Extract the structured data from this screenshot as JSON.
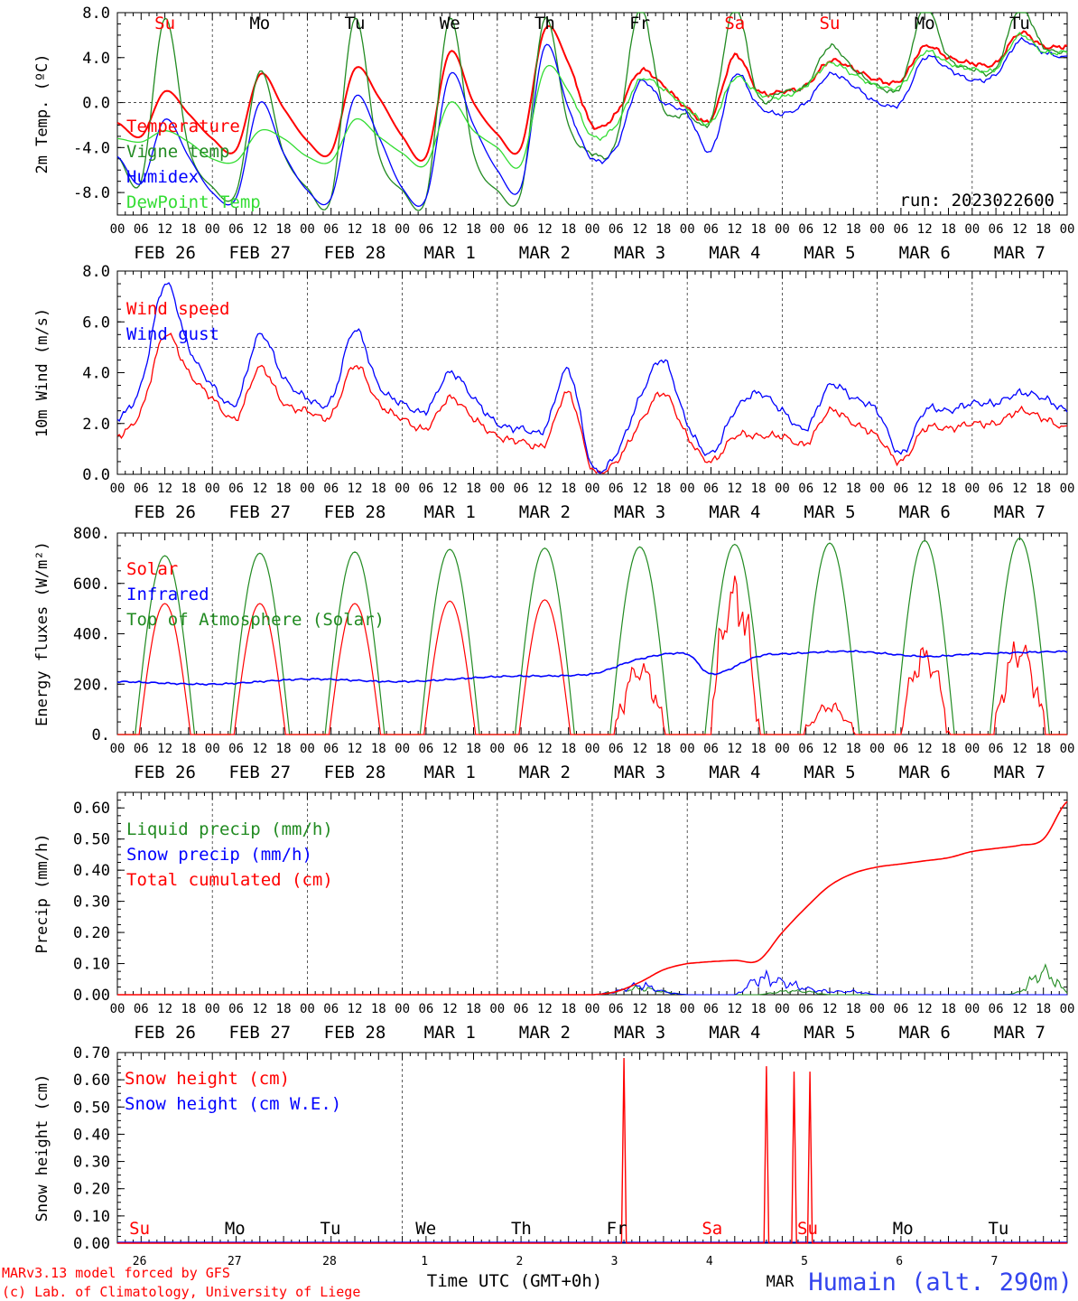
{
  "colors": {
    "red": "#ff0000",
    "green": "#228b22",
    "blue": "#0000ff",
    "lightgreen": "#33dd33",
    "black": "#000000",
    "station": "#3344ee"
  },
  "x_hour_labels": [
    "00",
    "06",
    "12",
    "18",
    "00",
    "06",
    "12",
    "18",
    "00",
    "06",
    "12",
    "18",
    "00",
    "06",
    "12",
    "18",
    "00",
    "06",
    "12",
    "18",
    "00",
    "06",
    "12",
    "18",
    "00",
    "06",
    "12",
    "18",
    "00",
    "06",
    "12",
    "18",
    "00",
    "06",
    "12",
    "18",
    "00",
    "06",
    "12",
    "18",
    "00"
  ],
  "x_date_labels": [
    "FEB 26",
    "FEB 27",
    "FEB 28",
    "MAR  1",
    "MAR  2",
    "MAR  3",
    "MAR  4",
    "MAR  5",
    "MAR  6",
    "MAR  7"
  ],
  "weekdays": [
    "Su",
    "Mo",
    "Tu",
    "We",
    "Th",
    "Fr",
    "Sa",
    "Su",
    "Mo",
    "Tu"
  ],
  "weekday_colors": [
    "red",
    "black",
    "black",
    "black",
    "black",
    "black",
    "red",
    "red",
    "black",
    "black"
  ],
  "bottom_day_numbers": [
    "26",
    "27",
    "28",
    "1",
    "2",
    "3",
    "4",
    "5",
    "6",
    "7"
  ],
  "bottom_month": "MAR",
  "footer": {
    "model": "MARv3.13 model forced by GFS",
    "lab": "(c) Lab. of Climatology, University of Liege",
    "time_axis": "Time UTC (GMT+0h)",
    "station": "Humain (alt. 290m)"
  },
  "chart_data": [
    {
      "type": "line",
      "ylabel": "2m Temp. (ºC)",
      "ylim": [
        -10,
        8
      ],
      "yticks": [
        "8.0",
        "4.0",
        "0.0",
        "-4.0",
        "-8.0"
      ],
      "ytick_values": [
        8,
        4,
        0,
        -4,
        -8
      ],
      "ref_line": 0,
      "run_label": "run: 2023022600",
      "x_hours": [
        0,
        6,
        12,
        18,
        24,
        30,
        36,
        42,
        48,
        54,
        60,
        66,
        72,
        78,
        84,
        90,
        96,
        102,
        108,
        114,
        120,
        126,
        132,
        138,
        144,
        150,
        156,
        162,
        168,
        174,
        180,
        186,
        192,
        198,
        204,
        210,
        216,
        222,
        228,
        234,
        240
      ],
      "series": [
        {
          "name": "Temperature",
          "color": "red",
          "values": [
            -1.8,
            -3.0,
            1.0,
            -1.0,
            -3.2,
            -4.2,
            2.5,
            -0.5,
            -3.4,
            -4.4,
            3.0,
            0.5,
            -3.0,
            -4.8,
            4.5,
            0.0,
            -2.8,
            -4.0,
            6.5,
            3.5,
            -2.0,
            -1.0,
            2.8,
            1.5,
            -0.5,
            -1.5,
            4.2,
            1.0,
            1.0,
            1.5,
            3.7,
            3.0,
            2.0,
            2.0,
            5.0,
            4.0,
            3.5,
            3.5,
            6.2,
            5.0,
            5.0
          ]
        },
        {
          "name": "Vigne temp",
          "color": "green",
          "values": [
            -4.8,
            -7.0,
            7.5,
            -4.0,
            -7.5,
            -8.0,
            2.8,
            -4.5,
            -7.6,
            -8.5,
            7.5,
            -4.5,
            -7.8,
            -8.5,
            7.5,
            -4.5,
            -7.8,
            -8.0,
            7.5,
            -2.0,
            -4.5,
            -3.5,
            8.5,
            -0.5,
            -1.0,
            -1.5,
            8.5,
            0.5,
            1.0,
            1.5,
            5.0,
            3.0,
            1.5,
            1.5,
            8.5,
            4.0,
            3.0,
            3.0,
            8.5,
            5.0,
            4.5
          ]
        },
        {
          "name": "Humidex",
          "color": "blue",
          "values": [
            -4.8,
            -7.2,
            -1.5,
            -4.8,
            -8.0,
            -8.5,
            0.0,
            -4.5,
            -7.8,
            -8.5,
            0.5,
            -3.0,
            -7.6,
            -8.5,
            2.5,
            -2.0,
            -6.0,
            -7.5,
            5.0,
            -0.5,
            -5.0,
            -4.0,
            1.8,
            0.0,
            -1.0,
            -4.3,
            2.5,
            -0.3,
            -1.0,
            0.0,
            2.5,
            1.5,
            0.0,
            0.0,
            4.0,
            3.0,
            2.0,
            2.5,
            5.5,
            4.5,
            4.0
          ]
        },
        {
          "name": "DewPoint Temp",
          "color": "lightgreen",
          "values": [
            -3.2,
            -3.5,
            -2.5,
            -3.5,
            -5.0,
            -5.2,
            -2.5,
            -3.2,
            -4.8,
            -5.2,
            -1.5,
            -3.0,
            -4.5,
            -5.5,
            0.0,
            -2.5,
            -4.0,
            -5.5,
            3.0,
            1.0,
            -3.0,
            -2.0,
            2.0,
            1.2,
            -0.5,
            -1.8,
            2.2,
            0.8,
            0.5,
            1.5,
            3.5,
            2.5,
            1.5,
            1.5,
            4.5,
            3.5,
            3.0,
            3.0,
            6.0,
            4.5,
            4.5
          ]
        }
      ]
    },
    {
      "type": "line",
      "ylabel": "10m Wind (m/s)",
      "ylim": [
        0,
        8
      ],
      "yticks": [
        "8.0",
        "6.0",
        "4.0",
        "2.0",
        "0.0"
      ],
      "ytick_values": [
        8,
        6,
        4,
        2,
        0
      ],
      "ref_line": 5,
      "x_hours": [
        0,
        6,
        12,
        18,
        24,
        30,
        36,
        42,
        48,
        54,
        60,
        66,
        72,
        78,
        84,
        90,
        96,
        102,
        108,
        114,
        120,
        126,
        132,
        138,
        144,
        150,
        156,
        162,
        168,
        174,
        180,
        186,
        192,
        198,
        204,
        210,
        216,
        222,
        228,
        234,
        240
      ],
      "series": [
        {
          "name": "Wind speed",
          "color": "red",
          "values": [
            1.5,
            2.5,
            5.5,
            4.0,
            3.0,
            2.2,
            4.2,
            2.8,
            2.5,
            2.3,
            4.3,
            2.8,
            2.2,
            1.8,
            3.0,
            2.2,
            1.5,
            1.3,
            1.2,
            3.2,
            0.2,
            0.5,
            2.0,
            3.2,
            1.5,
            0.5,
            1.5,
            1.5,
            1.5,
            1.2,
            2.5,
            2.0,
            1.5,
            0.5,
            1.8,
            1.8,
            2.0,
            2.0,
            2.5,
            2.2,
            1.8
          ]
        },
        {
          "name": "Wind gust",
          "color": "blue",
          "values": [
            2.2,
            3.5,
            7.5,
            5.0,
            3.5,
            2.8,
            5.5,
            3.8,
            3.0,
            2.9,
            5.7,
            3.5,
            2.8,
            2.5,
            4.0,
            3.0,
            2.0,
            1.8,
            1.8,
            4.1,
            0.3,
            0.8,
            3.0,
            4.5,
            2.0,
            0.8,
            2.5,
            3.2,
            2.5,
            1.8,
            3.5,
            3.0,
            2.5,
            0.8,
            2.5,
            2.5,
            2.8,
            2.8,
            3.2,
            3.0,
            2.5
          ]
        }
      ]
    },
    {
      "type": "line",
      "ylabel": "Energy fluxes (W/m²)",
      "ylim": [
        0,
        800
      ],
      "yticks": [
        "800.",
        "600.",
        "400.",
        "200.",
        "0."
      ],
      "ytick_values": [
        800,
        600,
        400,
        200,
        0
      ],
      "solar_peaks": [
        520,
        520,
        520,
        530,
        535,
        255,
        545,
        110,
        305,
        330
      ],
      "toa_peaks": [
        710,
        720,
        725,
        735,
        740,
        745,
        755,
        760,
        770,
        780
      ],
      "infrared_x": [
        0,
        24,
        48,
        72,
        96,
        120,
        132,
        144,
        150,
        162,
        168,
        186,
        204,
        216,
        240
      ],
      "infrared_values": [
        210,
        200,
        220,
        210,
        230,
        240,
        300,
        320,
        240,
        310,
        320,
        330,
        310,
        320,
        330
      ],
      "series": [
        {
          "name": "Solar",
          "color": "red"
        },
        {
          "name": "Infrared",
          "color": "blue"
        },
        {
          "name": "Top of Atmosphere (Solar)",
          "color": "green"
        }
      ]
    },
    {
      "type": "line",
      "ylabel": "Precip (mm/h)",
      "ylim": [
        0,
        0.65
      ],
      "yticks": [
        "0.60",
        "0.50",
        "0.40",
        "0.30",
        "0.20",
        "0.10",
        "0.00"
      ],
      "ytick_values": [
        0.6,
        0.5,
        0.4,
        0.3,
        0.2,
        0.1,
        0.0
      ],
      "x_hours": [
        0,
        120,
        126,
        132,
        138,
        144,
        156,
        162,
        168,
        174,
        180,
        186,
        192,
        198,
        204,
        210,
        216,
        222,
        228,
        234,
        240
      ],
      "series": [
        {
          "name": "Liquid precip (mm/h)",
          "color": "green",
          "values": [
            0,
            0,
            0.01,
            0.02,
            0.01,
            0,
            0,
            0,
            0.01,
            0.01,
            0,
            0,
            0,
            0,
            0,
            0,
            0,
            0,
            0.01,
            0.07,
            0.01
          ]
        },
        {
          "name": "Snow precip (mm/h)",
          "color": "blue",
          "values": [
            0,
            0,
            0.01,
            0.03,
            0.01,
            0,
            0,
            0.05,
            0.04,
            0.02,
            0.01,
            0.01,
            0,
            0,
            0,
            0,
            0,
            0,
            0,
            0,
            0
          ]
        },
        {
          "name": "Total cumulated (cm)",
          "color": "red",
          "values": [
            0,
            0,
            0.01,
            0.04,
            0.08,
            0.1,
            0.11,
            0.11,
            0.2,
            0.28,
            0.35,
            0.39,
            0.41,
            0.42,
            0.43,
            0.44,
            0.46,
            0.47,
            0.48,
            0.5,
            0.62
          ]
        }
      ]
    },
    {
      "type": "line",
      "ylabel": "Snow height (cm)",
      "ylim": [
        0,
        0.7
      ],
      "yticks": [
        "0.70",
        "0.60",
        "0.50",
        "0.40",
        "0.30",
        "0.20",
        "0.10",
        "0.00"
      ],
      "ytick_values": [
        0.7,
        0.6,
        0.5,
        0.4,
        0.3,
        0.2,
        0.1,
        0.0
      ],
      "spikes_hours": [
        128,
        164,
        171,
        175
      ],
      "spikes_values": [
        0.68,
        0.65,
        0.63,
        0.63
      ],
      "series": [
        {
          "name": "Snow height (cm)",
          "color": "red"
        },
        {
          "name": "Snow height (cm W.E.)",
          "color": "blue"
        }
      ]
    }
  ]
}
